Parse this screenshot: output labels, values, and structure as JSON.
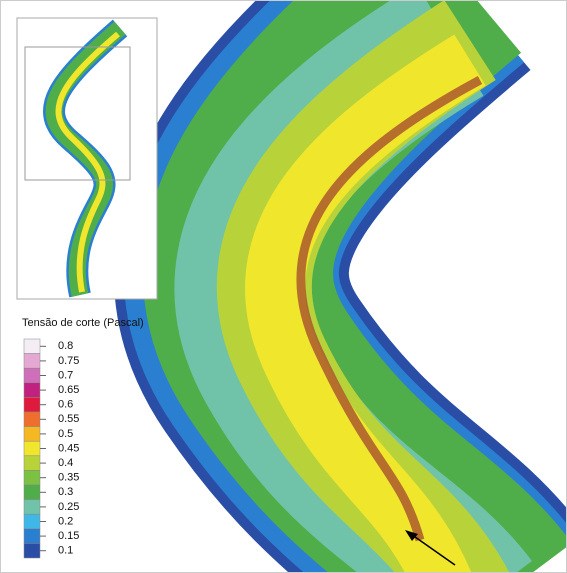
{
  "legend": {
    "title": "Tensão de corte (Pascal)",
    "levels": [
      {
        "value": 0.8,
        "color": "#f4eef4"
      },
      {
        "value": 0.75,
        "color": "#e4a8d2"
      },
      {
        "value": 0.7,
        "color": "#cf6fb9"
      },
      {
        "value": 0.65,
        "color": "#c2227f"
      },
      {
        "value": 0.6,
        "color": "#e01a3c"
      },
      {
        "value": 0.55,
        "color": "#ee6e2e"
      },
      {
        "value": 0.5,
        "color": "#f5b822"
      },
      {
        "value": 0.45,
        "color": "#f0e62c"
      },
      {
        "value": 0.4,
        "color": "#b8d23a"
      },
      {
        "value": 0.35,
        "color": "#7cc142"
      },
      {
        "value": 0.3,
        "color": "#4fae4a"
      },
      {
        "value": 0.25,
        "color": "#70c3a8"
      },
      {
        "value": 0.2,
        "color": "#3fb8e8"
      },
      {
        "value": 0.15,
        "color": "#2b7fd0"
      },
      {
        "value": 0.1,
        "color": "#2a4ea6"
      }
    ]
  }
}
